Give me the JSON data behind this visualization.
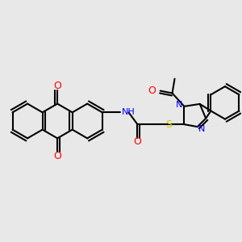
{
  "bg_color": "#e8e8e8",
  "bond_color": "#000000",
  "bond_width": 1.5,
  "atom_colors": {
    "O": "#ff0000",
    "N": "#0000ff",
    "S": "#cccc00",
    "H": "#000000",
    "C": "#000000"
  },
  "font_size": 8
}
